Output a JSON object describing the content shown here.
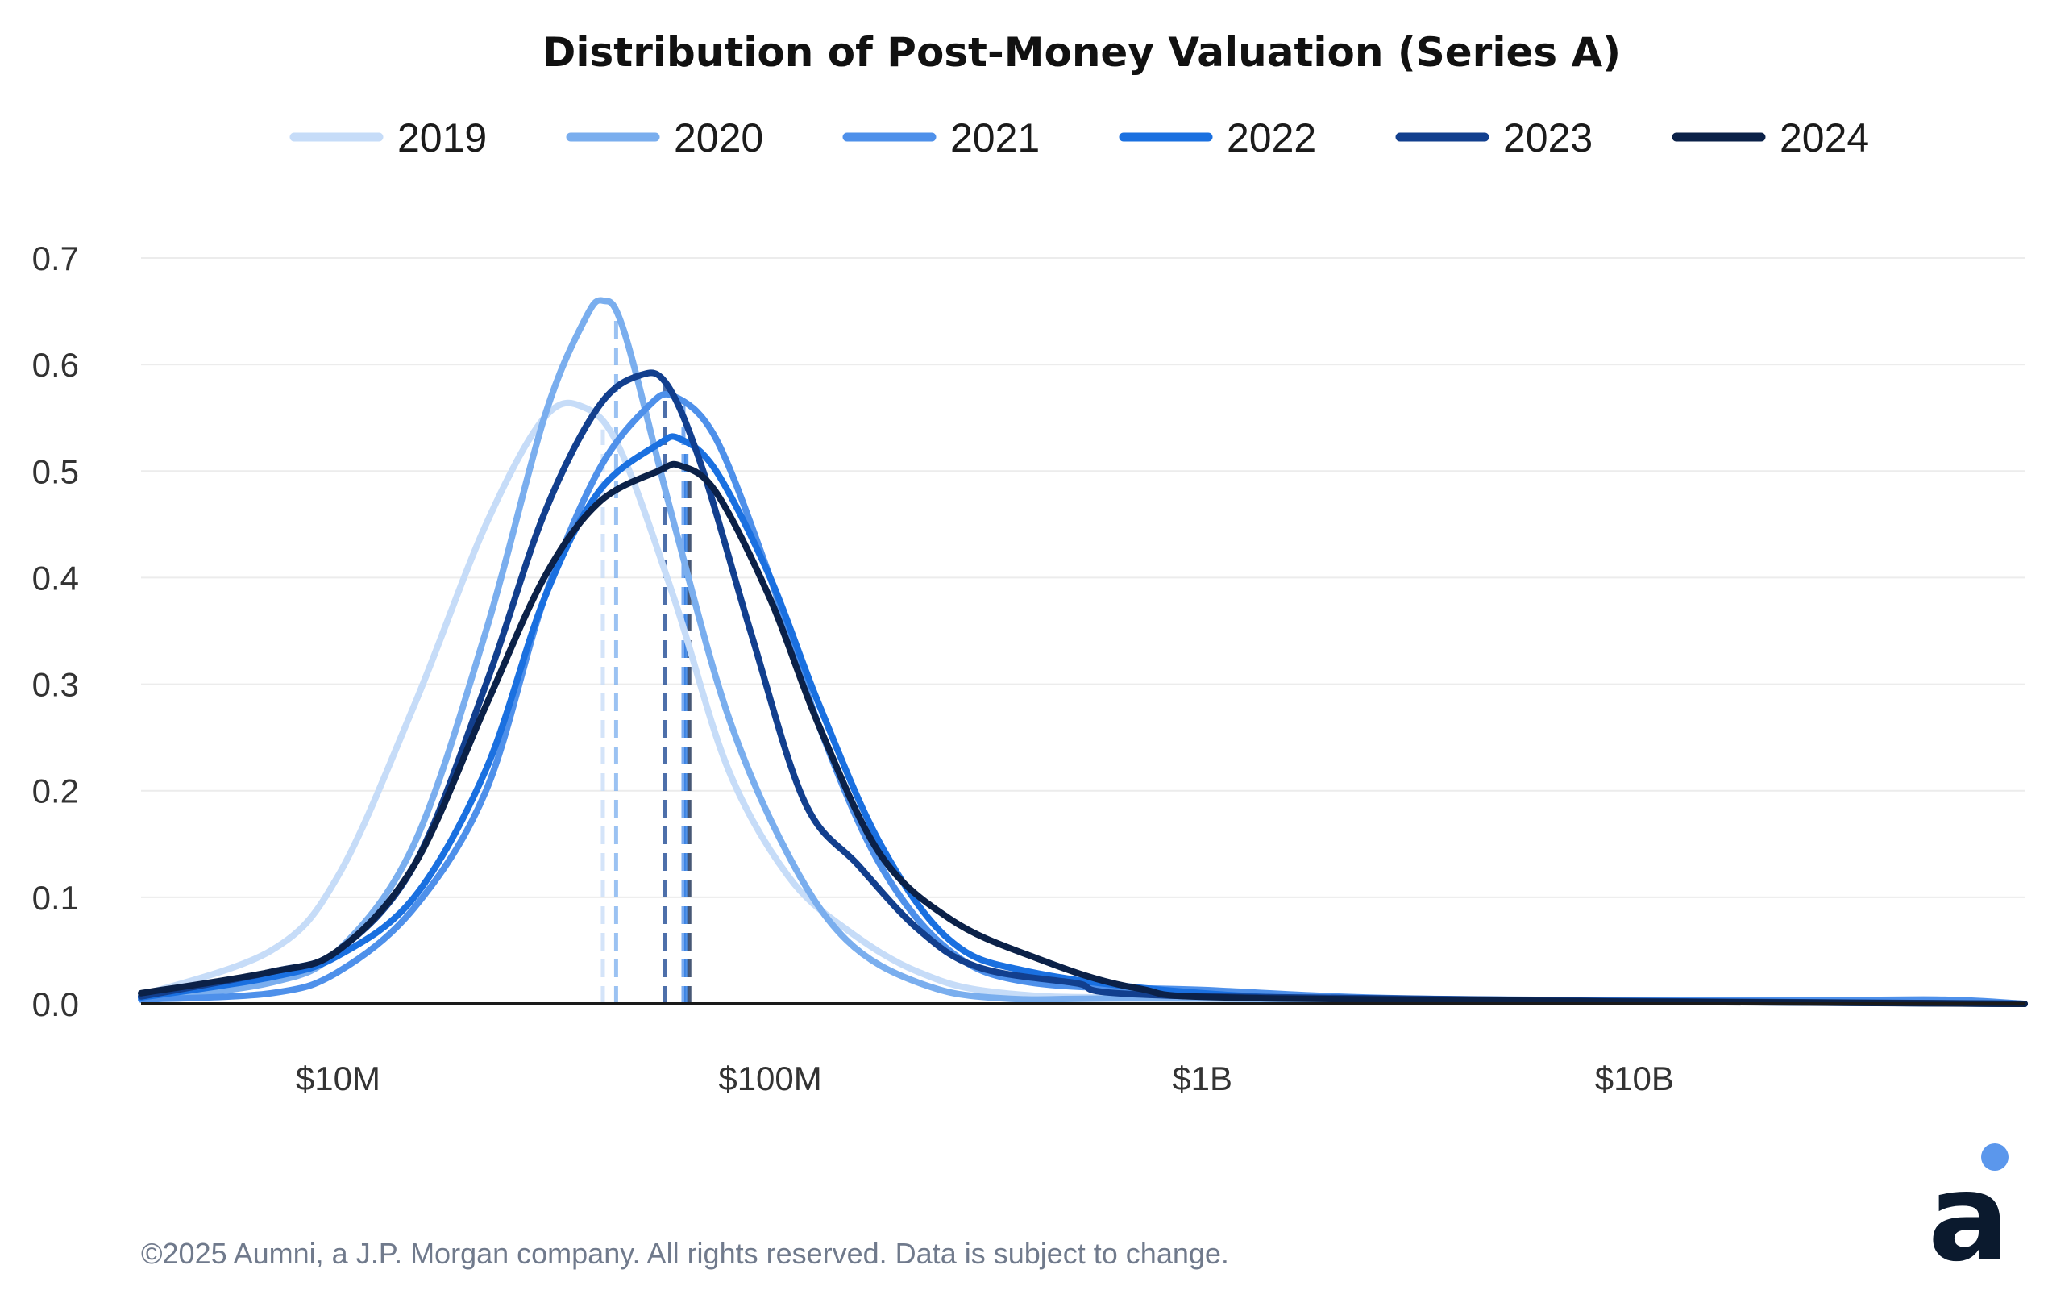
{
  "chart_data": {
    "type": "line",
    "title": "Distribution of Post-Money Valuation (Series A)",
    "xlabel": "",
    "ylabel": "",
    "x_scale": "log",
    "x_unit": "USD",
    "xlim": [
      3500000,
      80000000000
    ],
    "ylim": [
      0,
      0.7
    ],
    "x_ticks": [
      {
        "value": 10000000,
        "label": "$10M"
      },
      {
        "value": 100000000,
        "label": "$100M"
      },
      {
        "value": 1000000000,
        "label": "$1B"
      },
      {
        "value": 10000000000,
        "label": "$10B"
      }
    ],
    "y_ticks": [
      {
        "value": 0.0,
        "label": "0.0"
      },
      {
        "value": 0.1,
        "label": "0.1"
      },
      {
        "value": 0.2,
        "label": "0.2"
      },
      {
        "value": 0.3,
        "label": "0.3"
      },
      {
        "value": 0.4,
        "label": "0.4"
      },
      {
        "value": 0.5,
        "label": "0.5"
      },
      {
        "value": 0.6,
        "label": "0.6"
      },
      {
        "value": 0.7,
        "label": "0.7"
      }
    ],
    "grid": "horizontal",
    "legend_position": "top-center",
    "series": [
      {
        "name": "2019",
        "color": "#c6dcf8",
        "median": 41000000,
        "points": [
          [
            3500000,
            0.008
          ],
          [
            7000000,
            0.05
          ],
          [
            10000000,
            0.12
          ],
          [
            15000000,
            0.28
          ],
          [
            22000000,
            0.45
          ],
          [
            30000000,
            0.55
          ],
          [
            37000000,
            0.56
          ],
          [
            45000000,
            0.52
          ],
          [
            60000000,
            0.38
          ],
          [
            80000000,
            0.22
          ],
          [
            110000000,
            0.12
          ],
          [
            150000000,
            0.07
          ],
          [
            220000000,
            0.03
          ],
          [
            350000000,
            0.01
          ],
          [
            1000000000,
            0.005
          ],
          [
            80000000000,
            0.0
          ]
        ]
      },
      {
        "name": "2020",
        "color": "#7aaeee",
        "median": 44000000,
        "points": [
          [
            3500000,
            0.004
          ],
          [
            7000000,
            0.02
          ],
          [
            10000000,
            0.05
          ],
          [
            15000000,
            0.15
          ],
          [
            22000000,
            0.35
          ],
          [
            30000000,
            0.55
          ],
          [
            37000000,
            0.64
          ],
          [
            41000000,
            0.66
          ],
          [
            46000000,
            0.63
          ],
          [
            60000000,
            0.45
          ],
          [
            80000000,
            0.27
          ],
          [
            110000000,
            0.14
          ],
          [
            150000000,
            0.06
          ],
          [
            220000000,
            0.02
          ],
          [
            350000000,
            0.005
          ],
          [
            1000000000,
            0.005
          ],
          [
            80000000000,
            0.0
          ]
        ]
      },
      {
        "name": "2021",
        "color": "#4e90ea",
        "median": 63000000,
        "points": [
          [
            3500000,
            0.004
          ],
          [
            7000000,
            0.01
          ],
          [
            10000000,
            0.03
          ],
          [
            15000000,
            0.09
          ],
          [
            22000000,
            0.2
          ],
          [
            30000000,
            0.38
          ],
          [
            40000000,
            0.5
          ],
          [
            52000000,
            0.56
          ],
          [
            60000000,
            0.57
          ],
          [
            75000000,
            0.53
          ],
          [
            100000000,
            0.4
          ],
          [
            130000000,
            0.26
          ],
          [
            180000000,
            0.13
          ],
          [
            260000000,
            0.05
          ],
          [
            400000000,
            0.02
          ],
          [
            1000000000,
            0.013
          ],
          [
            3000000000,
            0.005
          ],
          [
            20000000000,
            0.003
          ],
          [
            50000000000,
            0.004
          ],
          [
            80000000000,
            0.0
          ]
        ]
      },
      {
        "name": "2022",
        "color": "#1a70e0",
        "median": 64000000,
        "points": [
          [
            3500000,
            0.006
          ],
          [
            7000000,
            0.025
          ],
          [
            10000000,
            0.045
          ],
          [
            15000000,
            0.1
          ],
          [
            22000000,
            0.22
          ],
          [
            30000000,
            0.38
          ],
          [
            40000000,
            0.48
          ],
          [
            55000000,
            0.525
          ],
          [
            62000000,
            0.53
          ],
          [
            75000000,
            0.5
          ],
          [
            100000000,
            0.4
          ],
          [
            130000000,
            0.28
          ],
          [
            180000000,
            0.15
          ],
          [
            260000000,
            0.06
          ],
          [
            400000000,
            0.03
          ],
          [
            1000000000,
            0.01
          ],
          [
            3000000000,
            0.004
          ],
          [
            80000000000,
            0.0
          ]
        ]
      },
      {
        "name": "2023",
        "color": "#123f8e",
        "median": 57000000,
        "points": [
          [
            3500000,
            0.007
          ],
          [
            7000000,
            0.03
          ],
          [
            10000000,
            0.05
          ],
          [
            15000000,
            0.13
          ],
          [
            22000000,
            0.3
          ],
          [
            30000000,
            0.46
          ],
          [
            40000000,
            0.56
          ],
          [
            50000000,
            0.59
          ],
          [
            58000000,
            0.58
          ],
          [
            70000000,
            0.5
          ],
          [
            90000000,
            0.35
          ],
          [
            120000000,
            0.19
          ],
          [
            160000000,
            0.13
          ],
          [
            220000000,
            0.07
          ],
          [
            300000000,
            0.035
          ],
          [
            500000000,
            0.02
          ],
          [
            1000000000,
            0.007
          ],
          [
            80000000000,
            0.0
          ]
        ]
      },
      {
        "name": "2024",
        "color": "#0b2148",
        "median": 65000000,
        "points": [
          [
            3500000,
            0.01
          ],
          [
            7000000,
            0.03
          ],
          [
            10000000,
            0.05
          ],
          [
            15000000,
            0.13
          ],
          [
            22000000,
            0.28
          ],
          [
            30000000,
            0.4
          ],
          [
            40000000,
            0.47
          ],
          [
            55000000,
            0.5
          ],
          [
            62000000,
            0.505
          ],
          [
            75000000,
            0.48
          ],
          [
            100000000,
            0.38
          ],
          [
            130000000,
            0.26
          ],
          [
            180000000,
            0.14
          ],
          [
            260000000,
            0.08
          ],
          [
            400000000,
            0.045
          ],
          [
            700000000,
            0.015
          ],
          [
            1500000000,
            0.005
          ],
          [
            80000000000,
            0.0
          ]
        ]
      }
    ]
  },
  "footer": {
    "copyright": "©2025 Aumni, a J.P. Morgan company. All rights reserved. Data is subject to change."
  },
  "logo": {
    "text": "a",
    "dot_color": "#5b97ec",
    "letter_color": "#0b1a2e"
  }
}
